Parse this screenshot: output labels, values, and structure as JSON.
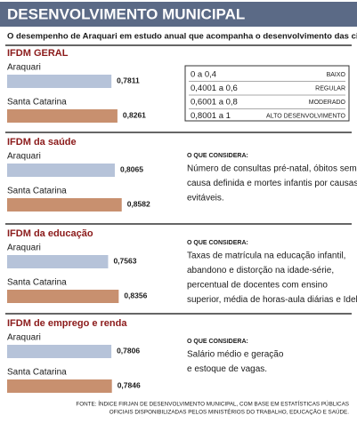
{
  "title": "DESENVOLVIMENTO MUNICIPAL",
  "subtitle": "O desempenho de Araquari em estudo anual que acompanha o desenvolvimento das cidades",
  "chart_data": [
    {
      "type": "bar",
      "title": "IFDM GERAL",
      "categories": [
        "Araquari",
        "Santa Catarina"
      ],
      "values": [
        0.7811,
        0.8261
      ],
      "value_labels": [
        "0,7811",
        "0,8261"
      ],
      "colors": [
        "#b6c3d9",
        "#c8906f"
      ]
    },
    {
      "type": "bar",
      "title": "IFDM da saúde",
      "categories": [
        "Araquari",
        "Santa Catarina"
      ],
      "values": [
        0.8065,
        0.8582
      ],
      "value_labels": [
        "0,8065",
        "0,8582"
      ],
      "colors": [
        "#b6c3d9",
        "#c8906f"
      ]
    },
    {
      "type": "bar",
      "title": "IFDM da educação",
      "categories": [
        "Araquari",
        "Santa Catarina"
      ],
      "values": [
        0.7563,
        0.8356
      ],
      "value_labels": [
        "0,7563",
        "0,8356"
      ],
      "colors": [
        "#b6c3d9",
        "#c8906f"
      ]
    },
    {
      "type": "bar",
      "title": "IFDM de emprego e renda",
      "categories": [
        "Araquari",
        "Santa Catarina"
      ],
      "values": [
        0.7806,
        0.7846
      ],
      "value_labels": [
        "0,7806",
        "0,7846"
      ],
      "colors": [
        "#b6c3d9",
        "#c8906f"
      ]
    }
  ],
  "scale": [
    [
      "0 a 0,4",
      "BAIXO"
    ],
    [
      "0,4001 a 0,6",
      "REGULAR"
    ],
    [
      "0,6001 a 0,8",
      "MODERADO"
    ],
    [
      "0,8001 a 1",
      "ALTO DESENVOLVIMENTO"
    ]
  ],
  "descriptions": [
    {
      "heading": "O QUE CONSIDERA:",
      "lines": [
        "Número de consultas pré-natal, óbitos sem",
        "causa definida e mortes infantis por causas",
        "evitáveis."
      ]
    },
    {
      "heading": "O QUE CONSIDERA:",
      "lines": [
        "Taxas de matrícula na educação infantil,",
        "abandono e distorção na idade-série,",
        "percentual de docentes com ensino",
        "superior, média de horas-aula diárias e Ideb."
      ]
    },
    {
      "heading": "O QUE CONSIDERA:",
      "lines": [
        "Salário médio e geração",
        "e estoque de vagas."
      ]
    }
  ],
  "source": [
    "FONTE: ÍNDICE FIRJAN DE DESENVOLVIMENTO MUNICIPAL, COM BASE EM ESTATÍSTICAS PÚBLICAS",
    "OFICIAIS DISPONIBILIZADAS PELOS MINISTÉRIOS DO TRABALHO, EDUCAÇÃO E SAÚDE."
  ]
}
